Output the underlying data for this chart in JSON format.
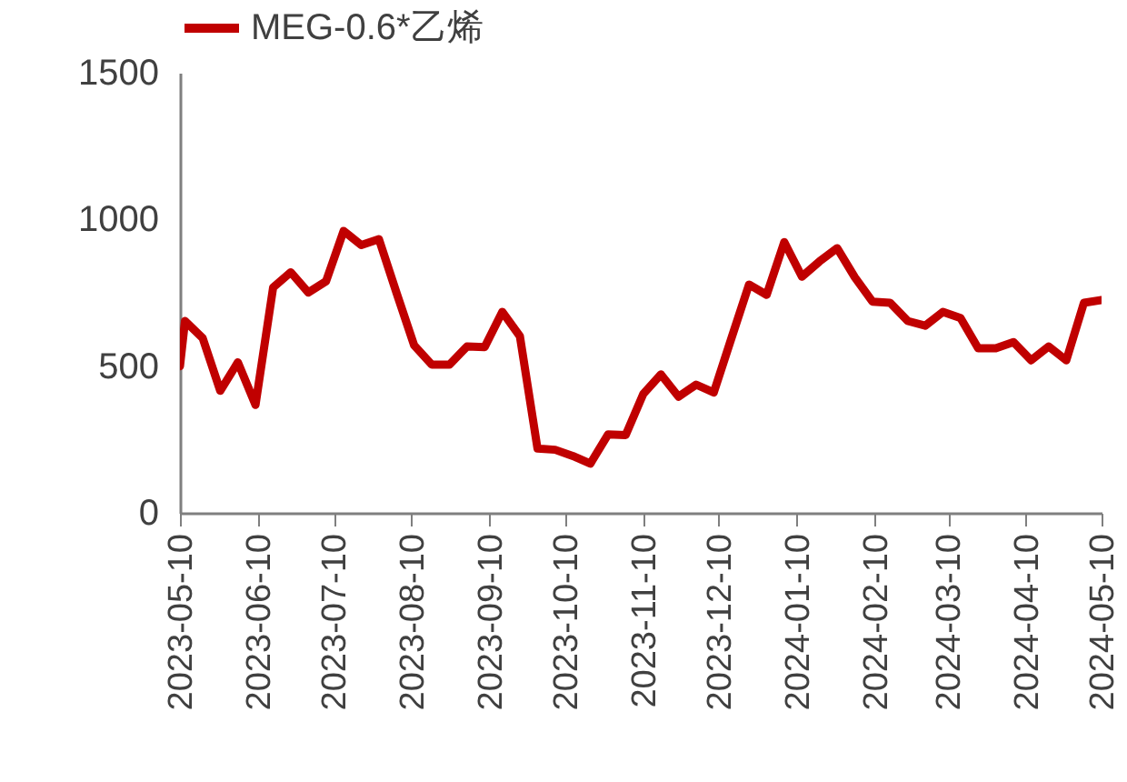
{
  "chart_data": {
    "type": "line",
    "x": [
      "2023-05-10",
      "2023-05-12",
      "2023-05-19",
      "2023-05-26",
      "2023-06-02",
      "2023-06-09",
      "2023-06-16",
      "2023-06-23",
      "2023-06-30",
      "2023-07-07",
      "2023-07-14",
      "2023-07-21",
      "2023-07-28",
      "2023-08-04",
      "2023-08-11",
      "2023-08-18",
      "2023-08-25",
      "2023-09-01",
      "2023-09-08",
      "2023-09-15",
      "2023-09-22",
      "2023-09-29",
      "2023-10-06",
      "2023-10-13",
      "2023-10-20",
      "2023-10-27",
      "2023-11-03",
      "2023-11-10",
      "2023-11-17",
      "2023-11-24",
      "2023-12-01",
      "2023-12-08",
      "2023-12-15",
      "2023-12-22",
      "2023-12-29",
      "2024-01-05",
      "2024-01-12",
      "2024-01-19",
      "2024-01-26",
      "2024-02-02",
      "2024-02-09",
      "2024-02-16",
      "2024-02-23",
      "2024-03-01",
      "2024-03-08",
      "2024-03-15",
      "2024-03-22",
      "2024-03-29",
      "2024-04-05",
      "2024-04-12",
      "2024-04-19",
      "2024-04-26",
      "2024-05-03",
      "2024-05-10"
    ],
    "series": [
      {
        "name": "MEG-0.6*乙烯",
        "color": "#c00000",
        "values": [
          500,
          654,
          596,
          416,
          513,
          368,
          768,
          820,
          751,
          789,
          961,
          913,
          933,
          750,
          571,
          505,
          505,
          567,
          565,
          685,
          602,
          219,
          215,
          194,
          168,
          267,
          265,
          405,
          472,
          396,
          437,
          410,
          595,
          778,
          743,
          923,
          805,
          857,
          902,
          803,
          720,
          716,
          654,
          638,
          685,
          664,
          561,
          561,
          582,
          520,
          567,
          520,
          716,
          725
        ]
      }
    ],
    "xlim": [
      "2023-05-10",
      "2024-05-10"
    ],
    "xticks": [
      "2023-05-10",
      "2023-06-10",
      "2023-07-10",
      "2023-08-10",
      "2023-09-10",
      "2023-10-10",
      "2023-11-10",
      "2023-12-10",
      "2024-01-10",
      "2024-02-10",
      "2024-03-10",
      "2024-04-10",
      "2024-05-10"
    ],
    "ylim": [
      0,
      1500
    ],
    "yticks": [
      0,
      500,
      1000,
      1500
    ],
    "grid": false,
    "legend": "top",
    "marker": "none",
    "line_style": "solid"
  }
}
